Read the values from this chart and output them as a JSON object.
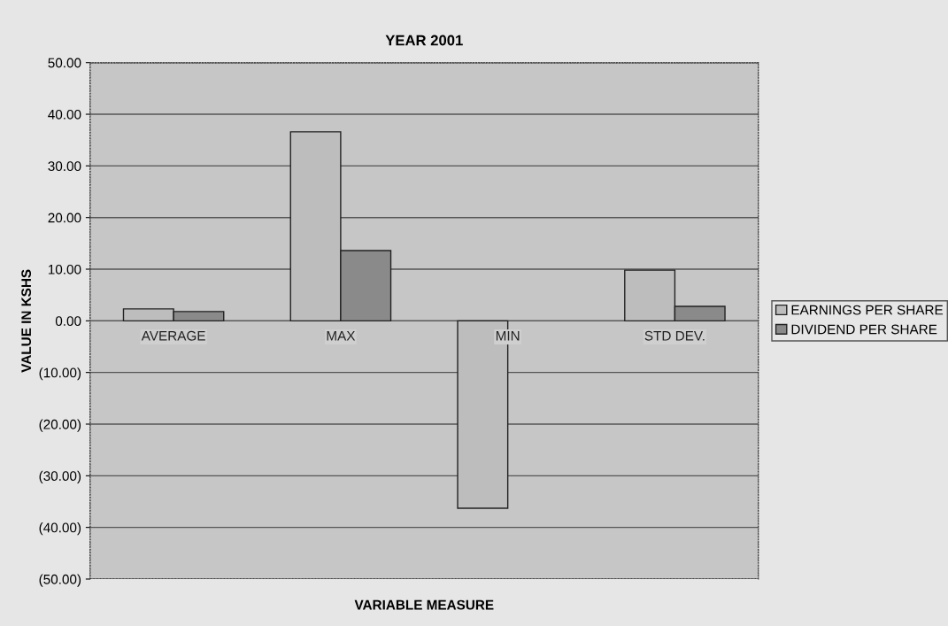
{
  "chart_data": {
    "type": "bar",
    "title": "YEAR 2001",
    "xlabel": "VARIABLE MEASURE",
    "ylabel": "VALUE IN KSHS",
    "categories": [
      "AVERAGE",
      "MAX",
      "MIN",
      "STD DEV."
    ],
    "series": [
      {
        "name": "EARNINGS PER SHARE",
        "color": "#bdbdbd",
        "values": [
          2.3,
          36.6,
          -36.3,
          9.8
        ]
      },
      {
        "name": "DIVIDEND PER SHARE",
        "color": "#8a8a8a",
        "values": [
          1.8,
          13.6,
          null,
          2.8
        ]
      }
    ],
    "ylim": [
      -50,
      50
    ],
    "yticks": [
      {
        "value": -50,
        "label": "(50.00)"
      },
      {
        "value": -40,
        "label": "(40.00)"
      },
      {
        "value": -30,
        "label": "(30.00)"
      },
      {
        "value": -20,
        "label": "(20.00)"
      },
      {
        "value": -10,
        "label": "(10.00)"
      },
      {
        "value": 0,
        "label": "0.00"
      },
      {
        "value": 10,
        "label": "10.00"
      },
      {
        "value": 20,
        "label": "20.00"
      },
      {
        "value": 30,
        "label": "30.00"
      },
      {
        "value": 40,
        "label": "40.00"
      },
      {
        "value": 50,
        "label": "50.00"
      }
    ],
    "grid": "y",
    "legend": "right"
  }
}
